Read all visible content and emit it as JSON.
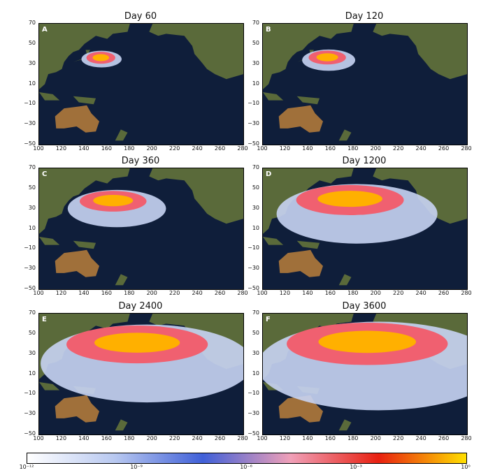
{
  "panels": [
    {
      "letter": "A",
      "title": "Day 60",
      "spread": 0.06
    },
    {
      "letter": "B",
      "title": "Day 120",
      "spread": 0.12
    },
    {
      "letter": "C",
      "title": "Day 360",
      "spread": 0.33
    },
    {
      "letter": "D",
      "title": "Day 1200",
      "spread": 0.62
    },
    {
      "letter": "E",
      "title": "Day 2400",
      "spread": 0.86
    },
    {
      "letter": "F",
      "title": "Day 3600",
      "spread": 1.0
    }
  ],
  "axes": {
    "x_ticks": [
      "100",
      "120",
      "140",
      "160",
      "180",
      "200",
      "220",
      "240",
      "260",
      "280"
    ],
    "y_ticks": [
      "70",
      "50",
      "30",
      "10",
      "−10",
      "−30",
      "−50"
    ],
    "x_range": [
      100,
      280
    ],
    "y_range": [
      -50,
      70
    ]
  },
  "colorbar": {
    "ticks": [
      "10⁻¹²",
      "10⁻⁹",
      "10⁻⁶",
      "10⁻³",
      "10⁰"
    ],
    "colors": [
      "#ffffff",
      "#b8c8f0",
      "#4060d8",
      "#f0a0b8",
      "#e82010",
      "#ffe000"
    ]
  },
  "colors": {
    "ocean": "#0f1e3a",
    "land": "#5a6a3a",
    "land_dry": "#a0703a",
    "plume_low": "#c8d4f4",
    "plume_mid": "#f06070",
    "plume_high": "#ffb000"
  }
}
